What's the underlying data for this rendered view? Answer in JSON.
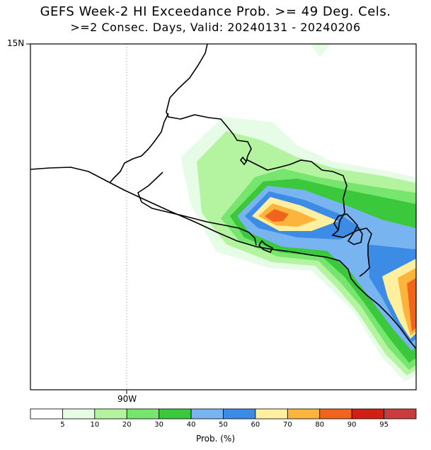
{
  "title": {
    "line1": "GEFS Week-2 HI Exceedance Prob. >= 49 Deg. Cels.",
    "line2": ">=2 Consec. Days, Valid: 20240131 - 20240206"
  },
  "map": {
    "lat_label": "15N",
    "lon_label": "90W",
    "grid": "dotted meridian at 90W"
  },
  "colorbar": {
    "title": "Prob. (%)",
    "ticks": [
      "5",
      "10",
      "20",
      "30",
      "40",
      "50",
      "60",
      "70",
      "80",
      "90",
      "95"
    ],
    "colors": [
      "#ffffff",
      "#e6fce6",
      "#b4f4a0",
      "#78e66e",
      "#3cc83c",
      "#78b4f0",
      "#3c8ce6",
      "#fff0a0",
      "#fcb43c",
      "#f0641e",
      "#d21e14",
      "#c83c3c"
    ]
  },
  "probability_field_colors": {
    "p5": "#e6fce6",
    "p10": "#b4f4a0",
    "p20": "#78e66e",
    "p30": "#3cc83c",
    "p40": "#78b4f0",
    "p50": "#3c8ce6",
    "p60": "#fff0a0",
    "p70": "#fcb43c",
    "p80": "#f0641e"
  }
}
